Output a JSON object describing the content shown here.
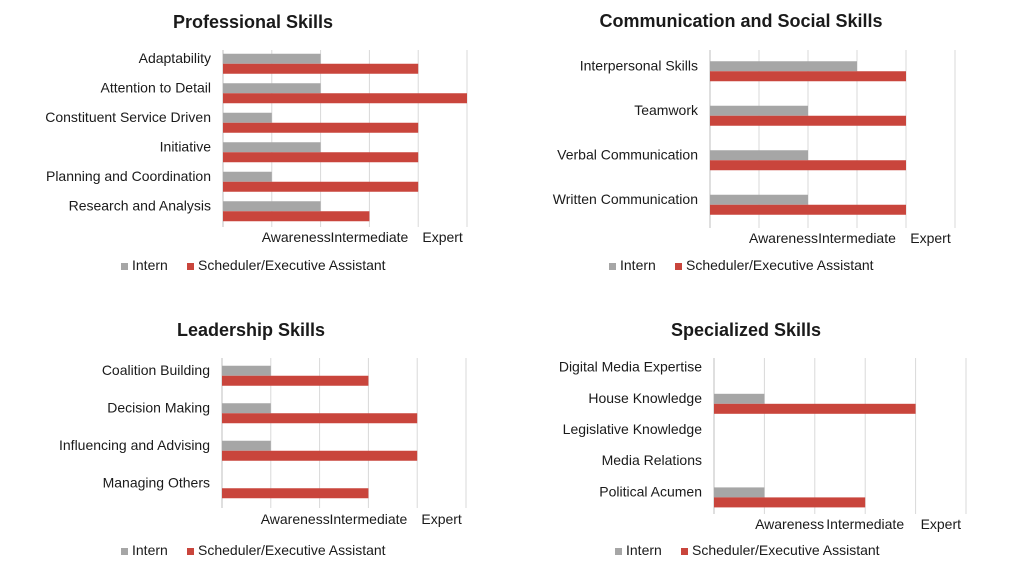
{
  "chart_data": [
    {
      "type": "bar",
      "orientation": "horizontal",
      "title": "Professional Skills",
      "categories": [
        "Adaptability",
        "Attention to Detail",
        "Constituent Service Driven",
        "Initiative",
        "Planning and Coordination",
        "Research and Analysis"
      ],
      "x_ticks": [
        "Awareness",
        "Intermediate",
        "Expert"
      ],
      "xlim": [
        0,
        5
      ],
      "series": [
        {
          "name": "Intern",
          "color": "#a6a6a6",
          "values": [
            2,
            2,
            1,
            2,
            1,
            2
          ]
        },
        {
          "name": "Scheduler/Executive Assistant",
          "color": "#c9453c",
          "values": [
            4,
            5,
            4,
            4,
            4,
            3
          ]
        }
      ],
      "legend_position": "bottom",
      "grid": true
    },
    {
      "type": "bar",
      "orientation": "horizontal",
      "title": "Communication and Social Skills",
      "categories": [
        "Interpersonal Skills",
        "Teamwork",
        "Verbal Communication",
        "Written Communication"
      ],
      "x_ticks": [
        "Awareness",
        "Intermediate",
        "Expert"
      ],
      "xlim": [
        0,
        5
      ],
      "series": [
        {
          "name": "Intern",
          "color": "#a6a6a6",
          "values": [
            3,
            2,
            2,
            2
          ]
        },
        {
          "name": "Scheduler/Executive Assistant",
          "color": "#c9453c",
          "values": [
            4,
            4,
            4,
            4
          ]
        }
      ],
      "legend_position": "bottom",
      "grid": true
    },
    {
      "type": "bar",
      "orientation": "horizontal",
      "title": "Leadership Skills",
      "categories": [
        "Coalition Building",
        "Decision Making",
        "Influencing and Advising",
        "Managing Others"
      ],
      "x_ticks": [
        "Awareness",
        "Intermediate",
        "Expert"
      ],
      "xlim": [
        0,
        5
      ],
      "series": [
        {
          "name": "Intern",
          "color": "#a6a6a6",
          "values": [
            1,
            1,
            1,
            0
          ]
        },
        {
          "name": "Scheduler/Executive Assistant",
          "color": "#c9453c",
          "values": [
            3,
            4,
            4,
            3
          ]
        }
      ],
      "legend_position": "bottom",
      "grid": true
    },
    {
      "type": "bar",
      "orientation": "horizontal",
      "title": "Specialized Skills",
      "categories": [
        "Digital Media Expertise",
        "House Knowledge",
        "Legislative Knowledge",
        "Media Relations",
        "Political Acumen"
      ],
      "x_ticks": [
        "Awareness",
        "Intermediate",
        "Expert"
      ],
      "xlim": [
        0,
        5
      ],
      "series": [
        {
          "name": "Intern",
          "color": "#a6a6a6",
          "values": [
            0,
            1,
            0,
            0,
            1
          ]
        },
        {
          "name": "Scheduler/Executive Assistant",
          "color": "#c9453c",
          "values": [
            0,
            4,
            0,
            0,
            3
          ]
        }
      ],
      "legend_position": "bottom",
      "grid": true
    }
  ]
}
